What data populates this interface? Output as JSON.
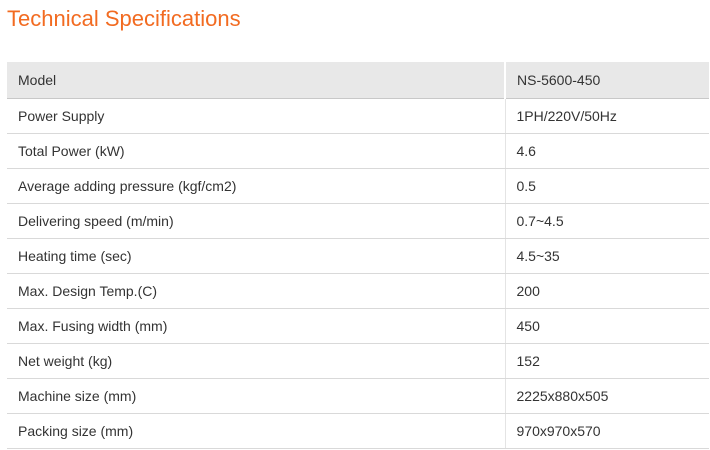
{
  "title": "Technical Specifications",
  "spec_table": {
    "header": [
      "Model",
      "NS-5600-450"
    ],
    "rows": [
      [
        "Power Supply",
        "1PH/220V/50Hz"
      ],
      [
        "Total Power (kW)",
        "4.6"
      ],
      [
        "Average adding pressure (kgf/cm2)",
        "0.5"
      ],
      [
        "Delivering speed (m/min)",
        "0.7~4.5"
      ],
      [
        "Heating time (sec)",
        "4.5~35"
      ],
      [
        "Max. Design Temp.(C)",
        "200"
      ],
      [
        "Max. Fusing width (mm)",
        "450"
      ],
      [
        "Net weight (kg)",
        "152"
      ],
      [
        "Machine size (mm)",
        "2225x880x505"
      ],
      [
        "Packing size (mm)",
        "970x970x570"
      ]
    ]
  },
  "colors": {
    "title": "#f26b21",
    "header_bg": "#e8e8e8",
    "text": "#333333",
    "row_divider": "#d9d9d9"
  }
}
